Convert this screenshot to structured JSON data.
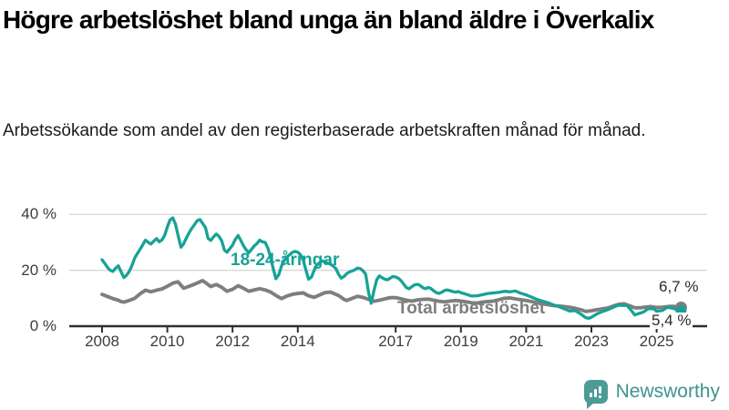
{
  "chart_data": {
    "type": "line",
    "title": "Högre arbetslöshet bland unga än bland äldre i Överkalix",
    "subtitle": "Arbetssökande som andel av den registerbaserade arbetskraften månad för månad.",
    "unit": "percent of registered labour force",
    "grid": "horizontal",
    "legend_position": "inline-labels",
    "x_range_years": [
      2008,
      2025.75
    ],
    "ylim": [
      0,
      44
    ],
    "y_ticks": [
      {
        "value": 0,
        "label": "0 %"
      },
      {
        "value": 20,
        "label": "20 %"
      },
      {
        "value": 40,
        "label": "40 %"
      }
    ],
    "x_ticks": [
      {
        "value": 2008,
        "label": "2008"
      },
      {
        "value": 2010,
        "label": "2010"
      },
      {
        "value": 2012,
        "label": "2012"
      },
      {
        "value": 2014,
        "label": "2014"
      },
      {
        "value": 2017,
        "label": "2017"
      },
      {
        "value": 2019,
        "label": "2019"
      },
      {
        "value": 2021,
        "label": "2021"
      },
      {
        "value": 2023,
        "label": "2023"
      },
      {
        "value": 2025,
        "label": "2025"
      }
    ],
    "series": [
      {
        "name": "18-24-åringar",
        "line_label": "18-24-åringar",
        "color": "#17a296",
        "end_value": 5.4,
        "end_value_label": "5,4 %",
        "points": [
          [
            2008.0,
            23.8
          ],
          [
            2008.08,
            22.5
          ],
          [
            2008.17,
            21.0
          ],
          [
            2008.25,
            20.0
          ],
          [
            2008.33,
            19.6
          ],
          [
            2008.42,
            20.8
          ],
          [
            2008.5,
            21.6
          ],
          [
            2008.58,
            19.5
          ],
          [
            2008.67,
            17.4
          ],
          [
            2008.75,
            18.2
          ],
          [
            2008.83,
            19.5
          ],
          [
            2008.92,
            21.8
          ],
          [
            2009.0,
            24.4
          ],
          [
            2009.08,
            26.0
          ],
          [
            2009.17,
            27.6
          ],
          [
            2009.25,
            29.2
          ],
          [
            2009.33,
            30.8
          ],
          [
            2009.42,
            30.0
          ],
          [
            2009.5,
            29.4
          ],
          [
            2009.58,
            30.4
          ],
          [
            2009.67,
            31.4
          ],
          [
            2009.75,
            30.2
          ],
          [
            2009.83,
            30.8
          ],
          [
            2009.92,
            32.5
          ],
          [
            2010.0,
            35.5
          ],
          [
            2010.08,
            38.0
          ],
          [
            2010.17,
            38.8
          ],
          [
            2010.25,
            36.5
          ],
          [
            2010.33,
            32.5
          ],
          [
            2010.42,
            28.3
          ],
          [
            2010.5,
            29.5
          ],
          [
            2010.58,
            31.5
          ],
          [
            2010.67,
            33.5
          ],
          [
            2010.75,
            35.0
          ],
          [
            2010.83,
            36.3
          ],
          [
            2010.92,
            37.8
          ],
          [
            2011.0,
            38.2
          ],
          [
            2011.08,
            36.8
          ],
          [
            2011.17,
            35.3
          ],
          [
            2011.25,
            31.5
          ],
          [
            2011.33,
            30.7
          ],
          [
            2011.42,
            32.0
          ],
          [
            2011.5,
            33.0
          ],
          [
            2011.58,
            32.2
          ],
          [
            2011.67,
            30.5
          ],
          [
            2011.75,
            27.2
          ],
          [
            2011.83,
            26.5
          ],
          [
            2011.92,
            27.8
          ],
          [
            2012.0,
            29.0
          ],
          [
            2012.08,
            31.0
          ],
          [
            2012.17,
            32.5
          ],
          [
            2012.25,
            30.8
          ],
          [
            2012.33,
            28.9
          ],
          [
            2012.42,
            27.3
          ],
          [
            2012.5,
            26.3
          ],
          [
            2012.58,
            27.5
          ],
          [
            2012.67,
            28.8
          ],
          [
            2012.75,
            29.6
          ],
          [
            2012.83,
            30.8
          ],
          [
            2012.92,
            30.2
          ],
          [
            2013.0,
            30.0
          ],
          [
            2013.08,
            28.0
          ],
          [
            2013.17,
            24.5
          ],
          [
            2013.25,
            20.5
          ],
          [
            2013.33,
            17.0
          ],
          [
            2013.42,
            18.5
          ],
          [
            2013.5,
            21.5
          ],
          [
            2013.58,
            23.5
          ],
          [
            2013.67,
            24.8
          ],
          [
            2013.75,
            25.6
          ],
          [
            2013.83,
            26.4
          ],
          [
            2013.92,
            26.8
          ],
          [
            2014.0,
            26.5
          ],
          [
            2014.08,
            25.6
          ],
          [
            2014.17,
            23.5
          ],
          [
            2014.25,
            20.0
          ],
          [
            2014.33,
            16.8
          ],
          [
            2014.42,
            17.6
          ],
          [
            2014.5,
            20.0
          ],
          [
            2014.58,
            21.8
          ],
          [
            2014.67,
            22.8
          ],
          [
            2014.75,
            23.4
          ],
          [
            2014.83,
            23.0
          ],
          [
            2014.92,
            22.6
          ],
          [
            2015.0,
            22.2
          ],
          [
            2015.08,
            21.6
          ],
          [
            2015.17,
            20.6
          ],
          [
            2015.25,
            18.6
          ],
          [
            2015.33,
            17.2
          ],
          [
            2015.42,
            17.8
          ],
          [
            2015.5,
            18.8
          ],
          [
            2015.58,
            19.4
          ],
          [
            2015.67,
            19.8
          ],
          [
            2015.75,
            20.2
          ],
          [
            2015.83,
            20.8
          ],
          [
            2015.92,
            20.6
          ],
          [
            2016.0,
            19.8
          ],
          [
            2016.08,
            18.6
          ],
          [
            2016.17,
            12.0
          ],
          [
            2016.25,
            8.2
          ],
          [
            2016.33,
            12.5
          ],
          [
            2016.42,
            16.6
          ],
          [
            2016.5,
            18.0
          ],
          [
            2016.58,
            17.4
          ],
          [
            2016.67,
            16.8
          ],
          [
            2016.75,
            16.6
          ],
          [
            2016.83,
            17.2
          ],
          [
            2016.92,
            17.8
          ],
          [
            2017.0,
            17.6
          ],
          [
            2017.08,
            17.2
          ],
          [
            2017.17,
            16.2
          ],
          [
            2017.25,
            15.0
          ],
          [
            2017.33,
            13.8
          ],
          [
            2017.42,
            13.4
          ],
          [
            2017.5,
            14.2
          ],
          [
            2017.58,
            14.8
          ],
          [
            2017.67,
            15.0
          ],
          [
            2017.75,
            14.6
          ],
          [
            2017.83,
            13.8
          ],
          [
            2017.92,
            13.4
          ],
          [
            2018.0,
            13.9
          ],
          [
            2018.08,
            13.5
          ],
          [
            2018.17,
            12.6
          ],
          [
            2018.25,
            12.0
          ],
          [
            2018.33,
            11.7
          ],
          [
            2018.42,
            12.2
          ],
          [
            2018.5,
            12.8
          ],
          [
            2018.58,
            13.0
          ],
          [
            2018.67,
            12.7
          ],
          [
            2018.75,
            12.4
          ],
          [
            2018.83,
            12.2
          ],
          [
            2018.92,
            12.4
          ],
          [
            2019.0,
            12.0
          ],
          [
            2019.17,
            11.4
          ],
          [
            2019.33,
            10.8
          ],
          [
            2019.5,
            10.9
          ],
          [
            2019.67,
            11.3
          ],
          [
            2019.83,
            11.7
          ],
          [
            2020.0,
            11.9
          ],
          [
            2020.17,
            12.1
          ],
          [
            2020.33,
            12.5
          ],
          [
            2020.5,
            12.3
          ],
          [
            2020.67,
            12.6
          ],
          [
            2020.83,
            11.8
          ],
          [
            2021.0,
            11.2
          ],
          [
            2021.17,
            10.4
          ],
          [
            2021.33,
            9.6
          ],
          [
            2021.5,
            9.0
          ],
          [
            2021.67,
            8.4
          ],
          [
            2021.83,
            7.6
          ],
          [
            2022.0,
            7.0
          ],
          [
            2022.17,
            6.2
          ],
          [
            2022.33,
            5.4
          ],
          [
            2022.5,
            5.6
          ],
          [
            2022.67,
            4.4
          ],
          [
            2022.83,
            3.0
          ],
          [
            2022.92,
            2.8
          ],
          [
            2023.0,
            3.2
          ],
          [
            2023.17,
            4.4
          ],
          [
            2023.33,
            5.2
          ],
          [
            2023.5,
            5.9
          ],
          [
            2023.67,
            6.8
          ],
          [
            2023.83,
            7.5
          ],
          [
            2024.0,
            7.4
          ],
          [
            2024.08,
            7.5
          ],
          [
            2024.17,
            6.4
          ],
          [
            2024.33,
            4.0
          ],
          [
            2024.42,
            4.4
          ],
          [
            2024.58,
            5.0
          ],
          [
            2024.75,
            6.3
          ],
          [
            2024.92,
            6.2
          ],
          [
            2025.0,
            5.3
          ],
          [
            2025.17,
            5.6
          ],
          [
            2025.33,
            6.8
          ],
          [
            2025.5,
            6.4
          ],
          [
            2025.75,
            5.4
          ]
        ]
      },
      {
        "name": "Total arbetslöshet",
        "line_label": "Total arbetslöshet",
        "color": "#7e7e7e",
        "end_value": 6.7,
        "end_value_label": "6,7 %",
        "points": [
          [
            2008.0,
            11.4
          ],
          [
            2008.17,
            10.6
          ],
          [
            2008.33,
            9.9
          ],
          [
            2008.5,
            9.3
          ],
          [
            2008.58,
            8.8
          ],
          [
            2008.67,
            8.6
          ],
          [
            2008.83,
            9.2
          ],
          [
            2009.0,
            10.0
          ],
          [
            2009.17,
            11.6
          ],
          [
            2009.33,
            12.9
          ],
          [
            2009.5,
            12.3
          ],
          [
            2009.67,
            12.9
          ],
          [
            2009.83,
            13.3
          ],
          [
            2010.0,
            14.3
          ],
          [
            2010.17,
            15.4
          ],
          [
            2010.33,
            15.9
          ],
          [
            2010.5,
            13.6
          ],
          [
            2010.67,
            14.3
          ],
          [
            2010.83,
            15.0
          ],
          [
            2011.0,
            15.9
          ],
          [
            2011.08,
            16.3
          ],
          [
            2011.17,
            15.6
          ],
          [
            2011.33,
            14.2
          ],
          [
            2011.5,
            14.9
          ],
          [
            2011.67,
            13.9
          ],
          [
            2011.83,
            12.5
          ],
          [
            2012.0,
            13.2
          ],
          [
            2012.17,
            14.5
          ],
          [
            2012.33,
            13.6
          ],
          [
            2012.5,
            12.5
          ],
          [
            2012.67,
            13.0
          ],
          [
            2012.83,
            13.4
          ],
          [
            2013.0,
            13.0
          ],
          [
            2013.17,
            12.2
          ],
          [
            2013.33,
            11.0
          ],
          [
            2013.5,
            9.9
          ],
          [
            2013.67,
            10.8
          ],
          [
            2013.83,
            11.4
          ],
          [
            2014.0,
            11.7
          ],
          [
            2014.17,
            11.9
          ],
          [
            2014.33,
            10.9
          ],
          [
            2014.5,
            10.3
          ],
          [
            2014.67,
            11.2
          ],
          [
            2014.83,
            12.0
          ],
          [
            2015.0,
            12.2
          ],
          [
            2015.08,
            11.8
          ],
          [
            2015.25,
            11.0
          ],
          [
            2015.42,
            9.6
          ],
          [
            2015.5,
            9.2
          ],
          [
            2015.67,
            10.0
          ],
          [
            2015.83,
            10.7
          ],
          [
            2016.0,
            10.3
          ],
          [
            2016.17,
            9.6
          ],
          [
            2016.33,
            8.9
          ],
          [
            2016.5,
            9.3
          ],
          [
            2016.67,
            9.8
          ],
          [
            2016.83,
            10.2
          ],
          [
            2017.0,
            10.2
          ],
          [
            2017.17,
            9.8
          ],
          [
            2017.33,
            9.3
          ],
          [
            2017.5,
            9.0
          ],
          [
            2017.67,
            9.4
          ],
          [
            2017.83,
            9.6
          ],
          [
            2018.0,
            9.7
          ],
          [
            2018.17,
            9.3
          ],
          [
            2018.33,
            8.9
          ],
          [
            2018.5,
            8.7
          ],
          [
            2018.67,
            9.0
          ],
          [
            2018.83,
            9.2
          ],
          [
            2019.0,
            9.0
          ],
          [
            2019.17,
            8.7
          ],
          [
            2019.33,
            8.4
          ],
          [
            2019.5,
            8.3
          ],
          [
            2019.67,
            8.6
          ],
          [
            2019.83,
            8.8
          ],
          [
            2020.0,
            9.0
          ],
          [
            2020.17,
            9.5
          ],
          [
            2020.33,
            10.0
          ],
          [
            2020.5,
            10.1
          ],
          [
            2020.67,
            9.8
          ],
          [
            2020.83,
            9.5
          ],
          [
            2021.0,
            9.2
          ],
          [
            2021.17,
            8.8
          ],
          [
            2021.33,
            8.4
          ],
          [
            2021.5,
            8.0
          ],
          [
            2021.67,
            7.7
          ],
          [
            2021.83,
            7.4
          ],
          [
            2022.0,
            7.2
          ],
          [
            2022.17,
            7.0
          ],
          [
            2022.33,
            6.8
          ],
          [
            2022.5,
            6.4
          ],
          [
            2022.67,
            5.9
          ],
          [
            2022.83,
            5.3
          ],
          [
            2023.0,
            5.5
          ],
          [
            2023.17,
            5.9
          ],
          [
            2023.33,
            6.2
          ],
          [
            2023.5,
            6.5
          ],
          [
            2023.67,
            7.2
          ],
          [
            2023.83,
            7.8
          ],
          [
            2024.0,
            8.0
          ],
          [
            2024.17,
            7.3
          ],
          [
            2024.33,
            6.6
          ],
          [
            2024.5,
            6.6
          ],
          [
            2024.67,
            6.9
          ],
          [
            2024.83,
            7.0
          ],
          [
            2025.0,
            6.7
          ],
          [
            2025.17,
            6.8
          ],
          [
            2025.33,
            7.0
          ],
          [
            2025.5,
            7.1
          ],
          [
            2025.75,
            6.7
          ]
        ]
      }
    ],
    "colors": {
      "accent_teal": "#17a296",
      "neutral_gray": "#7e7e7e",
      "gridline": "#d9d9d9",
      "axis": "#2f2f2f"
    }
  },
  "branding": {
    "brand_label": "Newsworthy",
    "icon": "newsworthy-speech-bubble-barchart-icon",
    "brand_color": "#4a9c95"
  }
}
